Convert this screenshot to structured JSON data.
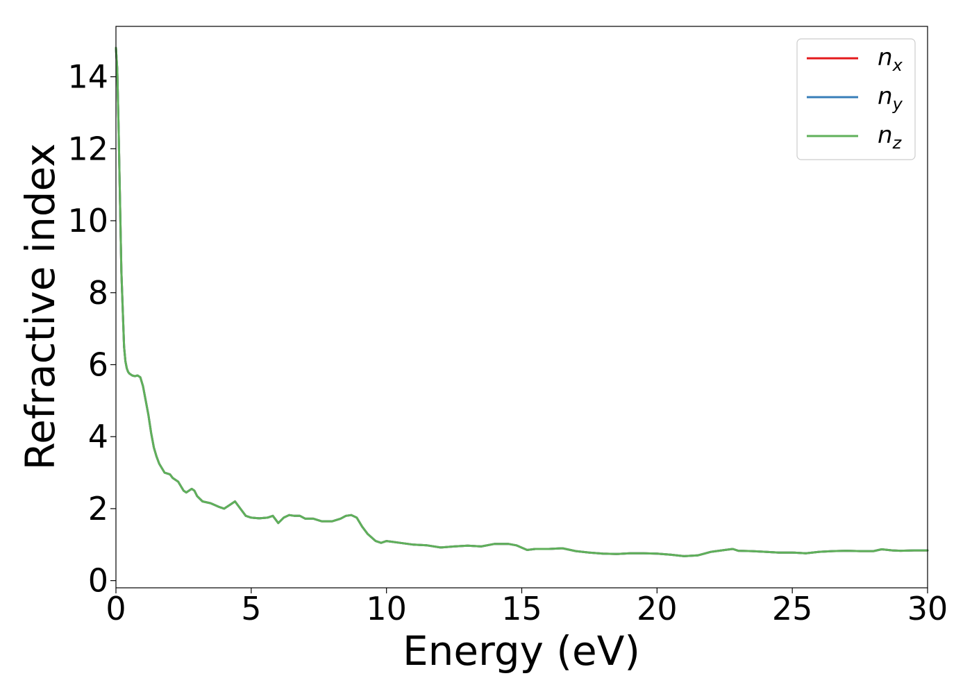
{
  "chart_data": {
    "type": "line",
    "title": "",
    "xlabel": "Energy (eV)",
    "ylabel": "Refractive index",
    "xlim": [
      0,
      30
    ],
    "ylim": [
      -0.2,
      15.4
    ],
    "xticks": [
      0,
      5,
      10,
      15,
      20,
      25,
      30
    ],
    "xtick_labels": [
      "0",
      "5",
      "10",
      "15",
      "20",
      "25",
      "30"
    ],
    "yticks": [
      0,
      2,
      4,
      6,
      8,
      10,
      12,
      14
    ],
    "ytick_labels": [
      "0",
      "2",
      "4",
      "6",
      "8",
      "10",
      "12",
      "14"
    ],
    "grid": false,
    "legend_position": "top-right",
    "series": [
      {
        "name": "n_x",
        "label_base": "n",
        "label_sub": "x",
        "color": "#e41a1c",
        "x": [
          0,
          0.05,
          0.1,
          0.2,
          0.3,
          0.35,
          0.4,
          0.45,
          0.5,
          0.6,
          0.7,
          0.8,
          0.9,
          1.0,
          1.1,
          1.2,
          1.3,
          1.4,
          1.5,
          1.6,
          1.8,
          2.0,
          2.1,
          2.3,
          2.5,
          2.6,
          2.8,
          2.9,
          3.0,
          3.2,
          3.5,
          3.8,
          4.0,
          4.2,
          4.4,
          4.6,
          4.8,
          5.0,
          5.3,
          5.6,
          5.8,
          6.0,
          6.2,
          6.4,
          6.6,
          6.8,
          7.0,
          7.3,
          7.6,
          8.0,
          8.3,
          8.5,
          8.7,
          8.9,
          9.1,
          9.3,
          9.6,
          9.8,
          10.0,
          10.2,
          10.5,
          11.0,
          11.5,
          12.0,
          12.5,
          13.0,
          13.5,
          14.0,
          14.5,
          14.8,
          15.2,
          15.5,
          16.0,
          16.5,
          17.0,
          17.5,
          18.0,
          18.5,
          19.0,
          19.5,
          20.0,
          20.5,
          21.0,
          21.5,
          22.0,
          22.5,
          22.8,
          23.0,
          23.5,
          24.0,
          24.5,
          25.0,
          25.5,
          26.0,
          26.5,
          27.0,
          27.5,
          28.0,
          28.3,
          28.7,
          29.0,
          29.5,
          30.0
        ],
        "values": [
          14.8,
          14.2,
          12.5,
          8.6,
          6.5,
          6.1,
          5.9,
          5.8,
          5.75,
          5.7,
          5.68,
          5.7,
          5.65,
          5.4,
          5.0,
          4.6,
          4.1,
          3.7,
          3.45,
          3.25,
          3.0,
          2.95,
          2.85,
          2.75,
          2.5,
          2.45,
          2.55,
          2.5,
          2.35,
          2.2,
          2.15,
          2.05,
          2.0,
          2.1,
          2.2,
          2.0,
          1.8,
          1.75,
          1.73,
          1.75,
          1.8,
          1.6,
          1.75,
          1.82,
          1.8,
          1.8,
          1.72,
          1.72,
          1.65,
          1.65,
          1.72,
          1.8,
          1.82,
          1.75,
          1.5,
          1.3,
          1.1,
          1.05,
          1.1,
          1.08,
          1.05,
          1.0,
          0.98,
          0.92,
          0.95,
          0.97,
          0.95,
          1.02,
          1.02,
          0.98,
          0.85,
          0.88,
          0.88,
          0.9,
          0.82,
          0.78,
          0.75,
          0.74,
          0.76,
          0.76,
          0.75,
          0.72,
          0.68,
          0.7,
          0.8,
          0.85,
          0.88,
          0.83,
          0.82,
          0.8,
          0.78,
          0.78,
          0.76,
          0.8,
          0.82,
          0.83,
          0.82,
          0.82,
          0.87,
          0.84,
          0.83,
          0.84,
          0.84
        ]
      },
      {
        "name": "n_y",
        "label_base": "n",
        "label_sub": "y",
        "color": "#377eb8",
        "x": [
          0,
          0.05,
          0.1,
          0.2,
          0.3,
          0.35,
          0.4,
          0.45,
          0.5,
          0.6,
          0.7,
          0.8,
          0.9,
          1.0,
          1.1,
          1.2,
          1.3,
          1.4,
          1.5,
          1.6,
          1.8,
          2.0,
          2.1,
          2.3,
          2.5,
          2.6,
          2.8,
          2.9,
          3.0,
          3.2,
          3.5,
          3.8,
          4.0,
          4.2,
          4.4,
          4.6,
          4.8,
          5.0,
          5.3,
          5.6,
          5.8,
          6.0,
          6.2,
          6.4,
          6.6,
          6.8,
          7.0,
          7.3,
          7.6,
          8.0,
          8.3,
          8.5,
          8.7,
          8.9,
          9.1,
          9.3,
          9.6,
          9.8,
          10.0,
          10.2,
          10.5,
          11.0,
          11.5,
          12.0,
          12.5,
          13.0,
          13.5,
          14.0,
          14.5,
          14.8,
          15.2,
          15.5,
          16.0,
          16.5,
          17.0,
          17.5,
          18.0,
          18.5,
          19.0,
          19.5,
          20.0,
          20.5,
          21.0,
          21.5,
          22.0,
          22.5,
          22.8,
          23.0,
          23.5,
          24.0,
          24.5,
          25.0,
          25.5,
          26.0,
          26.5,
          27.0,
          27.5,
          28.0,
          28.3,
          28.7,
          29.0,
          29.5,
          30.0
        ],
        "values": [
          14.8,
          14.2,
          12.5,
          8.6,
          6.5,
          6.1,
          5.9,
          5.8,
          5.75,
          5.7,
          5.68,
          5.7,
          5.65,
          5.4,
          5.0,
          4.6,
          4.1,
          3.7,
          3.45,
          3.25,
          3.0,
          2.95,
          2.85,
          2.75,
          2.5,
          2.45,
          2.55,
          2.5,
          2.35,
          2.2,
          2.15,
          2.05,
          2.0,
          2.1,
          2.2,
          2.0,
          1.8,
          1.75,
          1.73,
          1.75,
          1.8,
          1.6,
          1.75,
          1.82,
          1.8,
          1.8,
          1.72,
          1.72,
          1.65,
          1.65,
          1.72,
          1.8,
          1.82,
          1.75,
          1.5,
          1.3,
          1.1,
          1.05,
          1.1,
          1.08,
          1.05,
          1.0,
          0.98,
          0.92,
          0.95,
          0.97,
          0.95,
          1.02,
          1.02,
          0.98,
          0.85,
          0.88,
          0.88,
          0.9,
          0.82,
          0.78,
          0.75,
          0.74,
          0.76,
          0.76,
          0.75,
          0.72,
          0.68,
          0.7,
          0.8,
          0.85,
          0.88,
          0.83,
          0.82,
          0.8,
          0.78,
          0.78,
          0.76,
          0.8,
          0.82,
          0.83,
          0.82,
          0.82,
          0.87,
          0.84,
          0.83,
          0.84,
          0.84
        ]
      },
      {
        "name": "n_z",
        "label_base": "n",
        "label_sub": "z",
        "color": "#5fb05a",
        "x": [
          0,
          0.05,
          0.1,
          0.2,
          0.3,
          0.35,
          0.4,
          0.45,
          0.5,
          0.6,
          0.7,
          0.8,
          0.9,
          1.0,
          1.1,
          1.2,
          1.3,
          1.4,
          1.5,
          1.6,
          1.8,
          2.0,
          2.1,
          2.3,
          2.5,
          2.6,
          2.8,
          2.9,
          3.0,
          3.2,
          3.5,
          3.8,
          4.0,
          4.2,
          4.4,
          4.6,
          4.8,
          5.0,
          5.3,
          5.6,
          5.8,
          6.0,
          6.2,
          6.4,
          6.6,
          6.8,
          7.0,
          7.3,
          7.6,
          8.0,
          8.3,
          8.5,
          8.7,
          8.9,
          9.1,
          9.3,
          9.6,
          9.8,
          10.0,
          10.2,
          10.5,
          11.0,
          11.5,
          12.0,
          12.5,
          13.0,
          13.5,
          14.0,
          14.5,
          14.8,
          15.2,
          15.5,
          16.0,
          16.5,
          17.0,
          17.5,
          18.0,
          18.5,
          19.0,
          19.5,
          20.0,
          20.5,
          21.0,
          21.5,
          22.0,
          22.5,
          22.8,
          23.0,
          23.5,
          24.0,
          24.5,
          25.0,
          25.5,
          26.0,
          26.5,
          27.0,
          27.5,
          28.0,
          28.3,
          28.7,
          29.0,
          29.5,
          30.0
        ],
        "values": [
          14.8,
          14.2,
          12.5,
          8.6,
          6.5,
          6.1,
          5.9,
          5.8,
          5.75,
          5.7,
          5.68,
          5.7,
          5.65,
          5.4,
          5.0,
          4.6,
          4.1,
          3.7,
          3.45,
          3.25,
          3.0,
          2.95,
          2.85,
          2.75,
          2.5,
          2.45,
          2.55,
          2.5,
          2.35,
          2.2,
          2.15,
          2.05,
          2.0,
          2.1,
          2.2,
          2.0,
          1.8,
          1.75,
          1.73,
          1.75,
          1.8,
          1.6,
          1.75,
          1.82,
          1.8,
          1.8,
          1.72,
          1.72,
          1.65,
          1.65,
          1.72,
          1.8,
          1.82,
          1.75,
          1.5,
          1.3,
          1.1,
          1.05,
          1.1,
          1.08,
          1.05,
          1.0,
          0.98,
          0.92,
          0.95,
          0.97,
          0.95,
          1.02,
          1.02,
          0.98,
          0.85,
          0.88,
          0.88,
          0.9,
          0.82,
          0.78,
          0.75,
          0.74,
          0.76,
          0.76,
          0.75,
          0.72,
          0.68,
          0.7,
          0.8,
          0.85,
          0.88,
          0.83,
          0.82,
          0.8,
          0.78,
          0.78,
          0.76,
          0.8,
          0.82,
          0.83,
          0.82,
          0.82,
          0.87,
          0.84,
          0.83,
          0.84,
          0.84
        ]
      }
    ]
  }
}
